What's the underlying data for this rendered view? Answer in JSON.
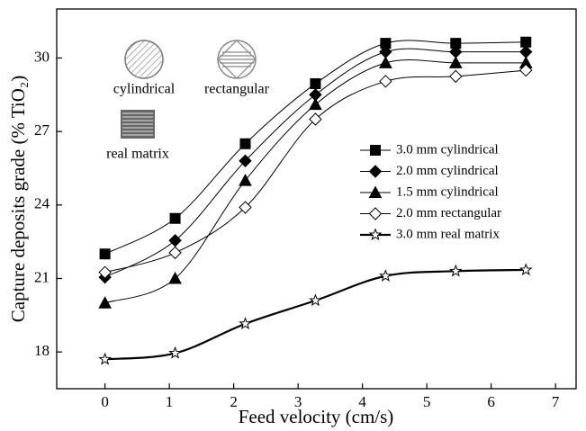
{
  "chart_data": {
    "type": "line",
    "x_label": "Feed velocity (cm/s)",
    "y_label": "Capture deposits grade (% TiO₂)",
    "x": [
      0,
      1.09,
      2.18,
      3.27,
      4.36,
      5.45,
      6.54
    ],
    "series": [
      {
        "name": "3.0 mm cylindrical",
        "color": "#000000",
        "marker": "square",
        "line_width": 1,
        "values": [
          22.0,
          23.45,
          26.5,
          28.95,
          30.6,
          30.6,
          30.65
        ]
      },
      {
        "name": "2.0 mm cylindrical",
        "color": "#000000",
        "marker": "diamond",
        "line_width": 1,
        "values": [
          21.05,
          22.55,
          25.8,
          28.5,
          30.25,
          30.25,
          30.25
        ]
      },
      {
        "name": "1.5 mm cylindrical",
        "color": "#000000",
        "marker": "triangle",
        "line_width": 1,
        "values": [
          20.0,
          21.0,
          25.0,
          28.1,
          29.8,
          29.8,
          29.8
        ]
      },
      {
        "name": "2.0 mm rectangular",
        "color": "#000000",
        "marker": "diamond-open",
        "line_width": 1,
        "values": [
          21.25,
          22.05,
          23.9,
          27.5,
          29.05,
          29.25,
          29.5
        ]
      },
      {
        "name": "3.0 mm real matrix",
        "color": "#000000",
        "marker": "star-open",
        "line_width": 2.2,
        "values": [
          17.7,
          17.95,
          19.15,
          20.1,
          21.1,
          21.3,
          21.35
        ]
      }
    ],
    "xlim": [
      -0.75,
      7.32
    ],
    "xticks": [
      0,
      1,
      2,
      3,
      4,
      5,
      6,
      7
    ],
    "ylim": [
      16.5,
      32
    ],
    "yticks": [
      18,
      21,
      24,
      27,
      30
    ],
    "legend_position": "right",
    "insets": {
      "cylindrical": "cylindrical",
      "rectangular": "rectangular",
      "real_matrix": "real matrix"
    }
  }
}
